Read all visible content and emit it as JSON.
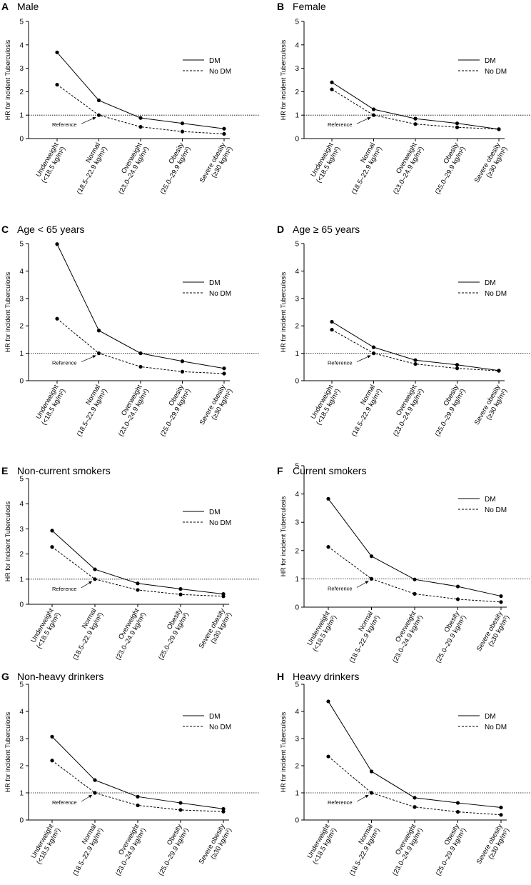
{
  "chart_data": [
    {
      "panel": "A",
      "title": "Male",
      "type": "line",
      "ylabel": "HR for incident Tuberculosis",
      "ylim": [
        0,
        5
      ],
      "yticks": [
        "0",
        "1",
        "2",
        "3",
        "4",
        "5"
      ],
      "categories": [
        [
          "Underweight",
          "(<18.5 kg/m²)"
        ],
        [
          "Normal",
          "(18.5–22.9 kg/m²)"
        ],
        [
          "Overweight",
          "(23.0–24.9 kg/m²)"
        ],
        [
          "Obesity",
          "(25.0–29.9 kg/m²)"
        ],
        [
          "Severe obesity",
          "(≥30 kg/m²)"
        ]
      ],
      "series": [
        {
          "name": "DM",
          "style": "solid",
          "values": [
            3.68,
            1.63,
            0.88,
            0.65,
            0.42
          ]
        },
        {
          "name": "No DM",
          "style": "dashed",
          "values": [
            2.3,
            1.0,
            0.5,
            0.3,
            0.2
          ]
        }
      ],
      "reference_line": 1.0,
      "annotation": "Reference"
    },
    {
      "panel": "B",
      "title": "Female",
      "type": "line",
      "ylabel": "HR for incident Tuberculosis",
      "ylim": [
        0,
        5
      ],
      "yticks": [
        "0",
        "1",
        "2",
        "3",
        "4",
        "5"
      ],
      "categories": [
        [
          "Underweight",
          "(<18.5 kg/m²)"
        ],
        [
          "Normal",
          "(18.5–22.9 kg/m²)"
        ],
        [
          "Overweight",
          "(23.0–24.9 kg/m²)"
        ],
        [
          "Obesity",
          "(25.0–29.9 kg/m²)"
        ],
        [
          "Severe obesity",
          "(≥30 kg/m²)"
        ]
      ],
      "series": [
        {
          "name": "DM",
          "style": "solid",
          "values": [
            2.4,
            1.25,
            0.85,
            0.65,
            0.4
          ]
        },
        {
          "name": "No DM",
          "style": "dashed",
          "values": [
            2.1,
            1.0,
            0.62,
            0.48,
            0.4
          ]
        }
      ],
      "reference_line": 1.0,
      "annotation": "Reference"
    },
    {
      "panel": "C",
      "title": "Age < 65 years",
      "type": "line",
      "ylabel": "HR for incident Tuberculosis",
      "ylim": [
        0,
        5
      ],
      "yticks": [
        "0",
        "1",
        "2",
        "3",
        "4",
        "5"
      ],
      "categories": [
        [
          "Underweight",
          "(<18.5 kg/m²)"
        ],
        [
          "Normal",
          "(18.5–22.9 kg/m²)"
        ],
        [
          "Overweight",
          "(23.0–24.9 kg/m²)"
        ],
        [
          "Obesity",
          "(25.0–29.9 kg/m²)"
        ],
        [
          "Severe obesity",
          "(≥30 kg/m²)"
        ]
      ],
      "series": [
        {
          "name": "DM",
          "style": "solid",
          "values": [
            4.98,
            1.83,
            1.0,
            0.71,
            0.45
          ]
        },
        {
          "name": "No DM",
          "style": "dashed",
          "values": [
            2.26,
            1.0,
            0.51,
            0.33,
            0.26
          ]
        }
      ],
      "reference_line": 1.0,
      "annotation": "Reference"
    },
    {
      "panel": "D",
      "title": "Age ≥ 65 years",
      "type": "line",
      "ylabel": "HR for incident Tuberculosis",
      "ylim": [
        0,
        5
      ],
      "yticks": [
        "0",
        "1",
        "2",
        "3",
        "4",
        "5"
      ],
      "categories": [
        [
          "Underweight",
          "(<18.5 kg/m²)"
        ],
        [
          "Normal",
          "(18.5–22.9 kg/m²)"
        ],
        [
          "Overweight",
          "(23.0–24.9 kg/m²)"
        ],
        [
          "Obesity",
          "(25.0–29.9 kg/m²)"
        ],
        [
          "Severe obesity",
          "(≥30 kg/m²)"
        ]
      ],
      "series": [
        {
          "name": "DM",
          "style": "solid",
          "values": [
            2.15,
            1.22,
            0.75,
            0.58,
            0.37
          ]
        },
        {
          "name": "No DM",
          "style": "dashed",
          "values": [
            1.86,
            1.0,
            0.61,
            0.45,
            0.36
          ]
        }
      ],
      "reference_line": 1.0,
      "annotation": "Reference"
    },
    {
      "panel": "E",
      "title": "Non-current smokers",
      "type": "line",
      "ylabel": "HR for incident Tuberculosis",
      "ylim": [
        0,
        5
      ],
      "yticks": [
        "0",
        "1",
        "2",
        "3",
        "4",
        "5"
      ],
      "categories": [
        [
          "Underweight",
          "(<18.5 kg/m²)"
        ],
        [
          "Normal",
          "(18.5–22.9 kg/m²)"
        ],
        [
          "Overweight",
          "(23.0–24.9 kg/m²)"
        ],
        [
          "Obesity",
          "(25.0–29.9 kg/m²)"
        ],
        [
          "Severe obesity",
          "(≥30 kg/m²)"
        ]
      ],
      "series": [
        {
          "name": "DM",
          "style": "solid",
          "values": [
            2.93,
            1.39,
            0.83,
            0.61,
            0.41
          ]
        },
        {
          "name": "No DM",
          "style": "dashed",
          "values": [
            2.28,
            1.0,
            0.57,
            0.39,
            0.32
          ]
        }
      ],
      "reference_line": 1.0,
      "annotation": "Reference"
    },
    {
      "panel": "F",
      "title": "Current smokers",
      "type": "line",
      "ylabel": "HR for incident Tuberculosis",
      "ylim": [
        0,
        5
      ],
      "yticks": [
        "0",
        "1",
        "2",
        "3",
        "4",
        "5"
      ],
      "categories": [
        [
          "Underweight",
          "(<18.5 kg/m²)"
        ],
        [
          "Normal",
          "(18.5–22.9 kg/m²)"
        ],
        [
          "Overweight",
          "(23.0–24.9 kg/m²)"
        ],
        [
          "Obesity",
          "(25.0–29.9 kg/m²)"
        ],
        [
          "Severe obesity",
          "(≥30 kg/m²)"
        ]
      ],
      "series": [
        {
          "name": "DM",
          "style": "solid",
          "values": [
            3.83,
            1.8,
            0.98,
            0.73,
            0.39
          ]
        },
        {
          "name": "No DM",
          "style": "dashed",
          "values": [
            2.13,
            1.0,
            0.47,
            0.28,
            0.18
          ]
        }
      ],
      "reference_line": 1.0,
      "annotation": "Reference"
    },
    {
      "panel": "G",
      "title": "Non-heavy drinkers",
      "type": "line",
      "ylabel": "HR for incident Tuberculosis",
      "ylim": [
        0,
        5
      ],
      "yticks": [
        "0",
        "1",
        "2",
        "3",
        "4",
        "5"
      ],
      "categories": [
        [
          "Underweight",
          "(<18.5 kg/m²)"
        ],
        [
          "Normal",
          "(18.5–22.9 kg/m²)"
        ],
        [
          "Overweight",
          "(23.0–24.9 kg/m²)"
        ],
        [
          "Obesity",
          "(25.0–29.9 kg/m²)"
        ],
        [
          "Severe obesity",
          "(≥30 kg/m²)"
        ]
      ],
      "series": [
        {
          "name": "DM",
          "style": "solid",
          "values": [
            3.07,
            1.47,
            0.86,
            0.63,
            0.41
          ]
        },
        {
          "name": "No DM",
          "style": "dashed",
          "values": [
            2.19,
            1.0,
            0.54,
            0.37,
            0.31
          ]
        }
      ],
      "reference_line": 1.0,
      "annotation": "Reference"
    },
    {
      "panel": "H",
      "title": "Heavy drinkers",
      "type": "line",
      "ylabel": "HR for incident Tuberculosis",
      "ylim": [
        0,
        5
      ],
      "yticks": [
        "0",
        "1",
        "2",
        "3",
        "4",
        "5"
      ],
      "categories": [
        [
          "Underweight",
          "(<18.5 kg/m²)"
        ],
        [
          "Normal",
          "(18.5–22.9 kg/m²)"
        ],
        [
          "Overweight",
          "(23.0–24.9 kg/m²)"
        ],
        [
          "Obesity",
          "(25.0–29.9 kg/m²)"
        ],
        [
          "Severe obesity",
          "(≥30 kg/m²)"
        ]
      ],
      "series": [
        {
          "name": "DM",
          "style": "solid",
          "values": [
            4.37,
            1.79,
            0.82,
            0.63,
            0.46
          ]
        },
        {
          "name": "No DM",
          "style": "dashed",
          "values": [
            2.34,
            1.0,
            0.48,
            0.3,
            0.19
          ]
        }
      ],
      "reference_line": 1.0,
      "annotation": "Reference"
    }
  ]
}
